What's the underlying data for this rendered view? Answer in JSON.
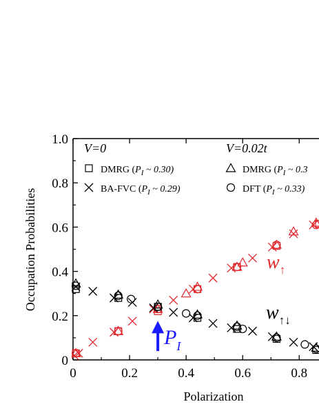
{
  "chart_data": {
    "type": "scatter",
    "title": "",
    "xlabel": "Polarization",
    "ylabel": "Occupation Probabilities",
    "xlim": [
      0,
      0.87
    ],
    "ylim": [
      0,
      1.0
    ],
    "x_ticks": [
      "0",
      "0.2",
      "0.4",
      "0.6",
      "0.8"
    ],
    "y_ticks": [
      "0",
      "0.2",
      "0.4",
      "0.6",
      "0.8",
      "1.0"
    ],
    "grid": false,
    "legend": {
      "groups": [
        {
          "header": "V=0",
          "entries": [
            {
              "marker": "square",
              "text": "DMRG (P",
              "sub": "I",
              "suffix": " ~ 0.30)"
            },
            {
              "marker": "cross",
              "text": "BA-FVC (P",
              "sub": "I",
              "suffix": " ~ 0.29)"
            }
          ]
        },
        {
          "header": "V=0.02t",
          "entries": [
            {
              "marker": "triangle",
              "text": "DMRG (P",
              "sub": "I",
              "suffix": " ~ 0.3"
            },
            {
              "marker": "circle",
              "text": "DFT (P",
              "sub": "I",
              "suffix": " ~ 0.33)"
            }
          ]
        }
      ]
    },
    "annotations": {
      "w_up": {
        "main": "w",
        "sub": "↑",
        "color": "#e0282d"
      },
      "w_updown": {
        "main": "w",
        "sub": "↑↓",
        "color": "#000000"
      },
      "p_i": {
        "main": "P",
        "sub": "I",
        "color": "#1a1aff",
        "arrow_x": 0.3,
        "arrow_from": 0.04,
        "arrow_to": 0.17
      }
    },
    "colors": {
      "w_up": "#e0282d",
      "w_updown": "#000000",
      "arrow": "#1a1aff"
    },
    "series": [
      {
        "name": "",
        "color": "#e0282d",
        "marker": "cross",
        "x": [
          0.005,
          0.02,
          0.07,
          0.145,
          0.21,
          0.285,
          0.355,
          0.425,
          0.495,
          0.56,
          0.635,
          0.705,
          0.78,
          0.85
        ],
        "y": [
          0.02,
          0.03,
          0.08,
          0.125,
          0.175,
          0.23,
          0.27,
          0.32,
          0.37,
          0.415,
          0.46,
          0.51,
          0.57,
          0.61
        ]
      },
      {
        "name": "",
        "color": "#e0282d",
        "marker": "square",
        "x": [
          0.01,
          0.16,
          0.3,
          0.44,
          0.58,
          0.72,
          0.87
        ],
        "y": [
          0.03,
          0.13,
          0.22,
          0.32,
          0.42,
          0.515,
          0.615
        ]
      },
      {
        "name": "",
        "color": "#e0282d",
        "marker": "triangle",
        "x": [
          0.01,
          0.16,
          0.3,
          0.44,
          0.58,
          0.72,
          0.86
        ],
        "y": [
          0.03,
          0.13,
          0.23,
          0.33,
          0.42,
          0.52,
          0.62
        ]
      },
      {
        "name": "",
        "color": "#e0282d",
        "marker": "circle",
        "x": [
          0.01,
          0.16,
          0.3,
          0.44,
          0.58,
          0.72,
          0.86
        ],
        "y": [
          0.03,
          0.13,
          0.23,
          0.32,
          0.42,
          0.52,
          0.61
        ]
      },
      {
        "name": "",
        "color": "#e0282d",
        "marker": "triangle",
        "x": [
          0.4,
          0.6,
          0.78
        ],
        "y": [
          0.3,
          0.44,
          0.58
        ]
      },
      {
        "name": "",
        "color": "#000000",
        "marker": "cross",
        "x": [
          0.01,
          0.07,
          0.145,
          0.21,
          0.285,
          0.355,
          0.425,
          0.495,
          0.56,
          0.635,
          0.705,
          0.78,
          0.85
        ],
        "y": [
          0.33,
          0.31,
          0.28,
          0.26,
          0.235,
          0.215,
          0.19,
          0.165,
          0.145,
          0.13,
          0.105,
          0.08,
          0.06
        ]
      },
      {
        "name": "",
        "color": "#000000",
        "marker": "square",
        "x": [
          0.01,
          0.16,
          0.3,
          0.44,
          0.58,
          0.72,
          0.86
        ],
        "y": [
          0.32,
          0.28,
          0.24,
          0.19,
          0.14,
          0.095,
          0.045
        ]
      },
      {
        "name": "",
        "color": "#000000",
        "marker": "triangle",
        "x": [
          0.01,
          0.16,
          0.3,
          0.44,
          0.58,
          0.72,
          0.86
        ],
        "y": [
          0.345,
          0.295,
          0.25,
          0.205,
          0.155,
          0.105,
          0.055
        ]
      },
      {
        "name": "",
        "color": "#000000",
        "marker": "circle",
        "x": [
          0.01,
          0.16,
          0.205,
          0.3,
          0.4,
          0.44,
          0.58,
          0.6,
          0.72,
          0.82,
          0.86
        ],
        "y": [
          0.335,
          0.29,
          0.275,
          0.24,
          0.21,
          0.2,
          0.15,
          0.14,
          0.1,
          0.07,
          0.05
        ]
      }
    ]
  }
}
